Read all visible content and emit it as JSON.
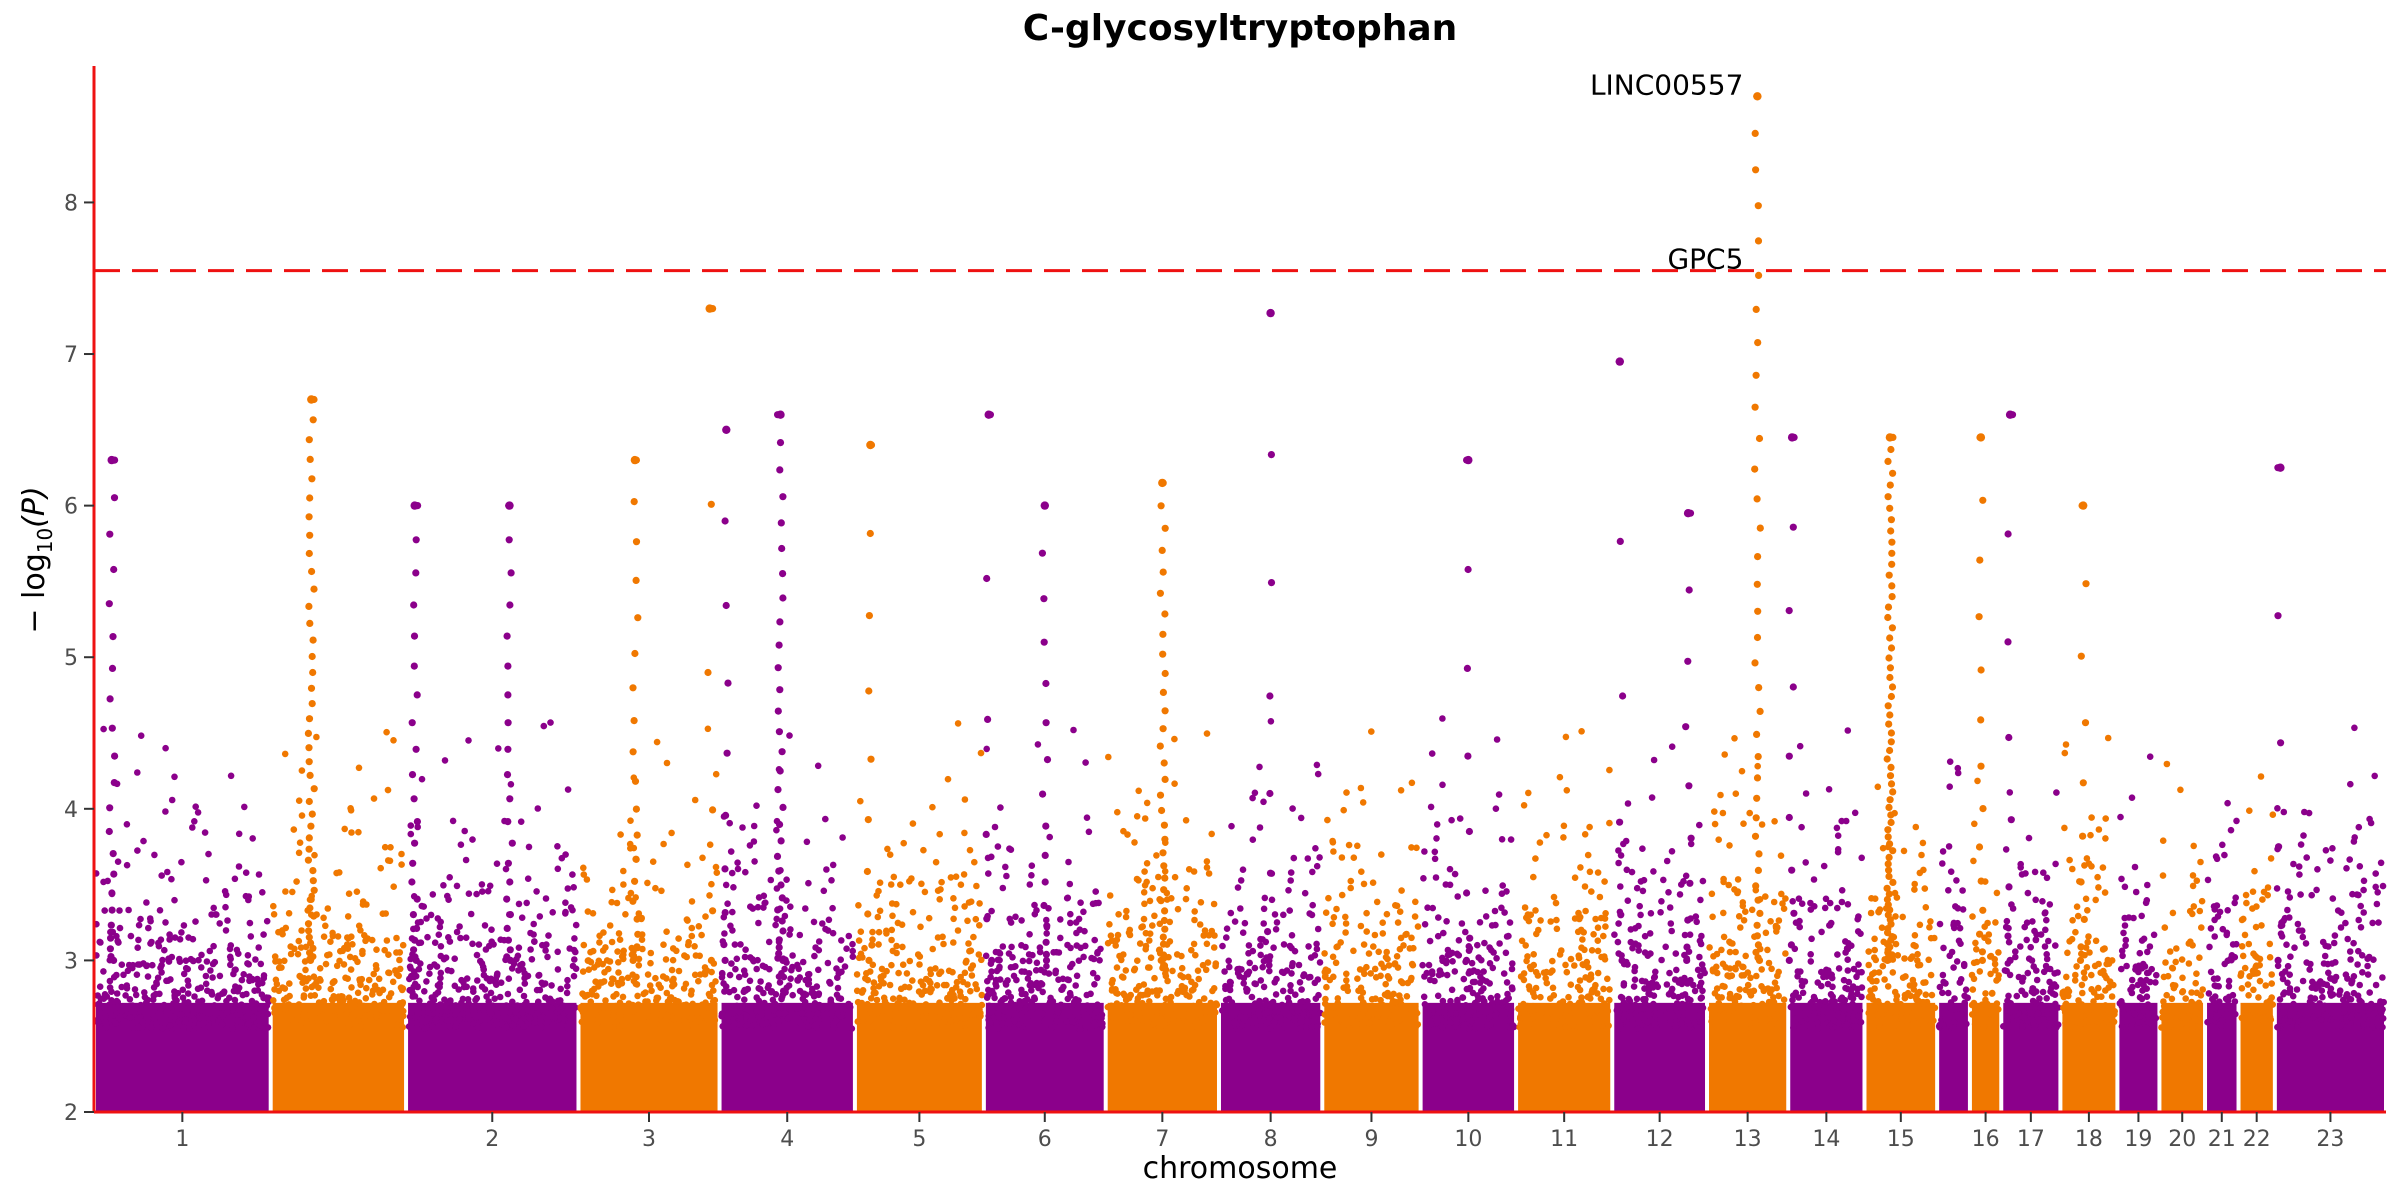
{
  "chart_data": {
    "type": "scatter",
    "subtype": "manhattan",
    "title": "C-glycosyltryptophan",
    "xlabel": "chromosome",
    "ylabel_main": "− log",
    "ylabel_sub": "10",
    "ylabel_tail": "(P)",
    "ylim": [
      2,
      8.9
    ],
    "yticks": [
      2,
      3,
      4,
      5,
      6,
      7,
      8
    ],
    "threshold": 7.55,
    "threshold_color": "#ee1111",
    "colors": [
      "#8b008b",
      "#f07800"
    ],
    "grid": false,
    "chromosomes": [
      {
        "label": "1",
        "start": 0,
        "length": 248
      },
      {
        "label": "",
        "start": 248,
        "length": 190
      },
      {
        "label": "2",
        "start": 438,
        "length": 242
      },
      {
        "label": "3",
        "start": 680,
        "length": 198
      },
      {
        "label": "4",
        "start": 878,
        "length": 190
      },
      {
        "label": "5",
        "start": 1068,
        "length": 181
      },
      {
        "label": "6",
        "start": 1249,
        "length": 171
      },
      {
        "label": "7",
        "start": 1420,
        "length": 159
      },
      {
        "label": "8",
        "start": 1579,
        "length": 145
      },
      {
        "label": "9",
        "start": 1724,
        "length": 138
      },
      {
        "label": "10",
        "start": 1862,
        "length": 134
      },
      {
        "label": "11",
        "start": 1996,
        "length": 135
      },
      {
        "label": "12",
        "start": 2131,
        "length": 133
      },
      {
        "label": "13",
        "start": 2264,
        "length": 114
      },
      {
        "label": "14",
        "start": 2378,
        "length": 107
      },
      {
        "label": "15",
        "start": 2485,
        "length": 102
      },
      {
        "label": "",
        "start": 2587,
        "length": 46
      },
      {
        "label": "16",
        "start": 2633,
        "length": 44
      },
      {
        "label": "17",
        "start": 2677,
        "length": 83
      },
      {
        "label": "18",
        "start": 2760,
        "length": 80
      },
      {
        "label": "19",
        "start": 2840,
        "length": 59
      },
      {
        "label": "20",
        "start": 2899,
        "length": 64
      },
      {
        "label": "21",
        "start": 2963,
        "length": 47
      },
      {
        "label": "22",
        "start": 3010,
        "length": 51
      },
      {
        "label": "23",
        "start": 3061,
        "length": 156
      }
    ],
    "peaks": [
      {
        "chrom": 0,
        "pos": 0.1,
        "max": 6.3,
        "h": 22
      },
      {
        "chrom": 1,
        "pos": 0.3,
        "max": 6.7,
        "h": 45
      },
      {
        "chrom": 2,
        "pos": 0.05,
        "max": 6.0,
        "h": 22
      },
      {
        "chrom": 2,
        "pos": 0.6,
        "max": 6.0,
        "h": 22
      },
      {
        "chrom": 3,
        "pos": 0.4,
        "max": 6.3,
        "h": 20
      },
      {
        "chrom": 3,
        "pos": 0.93,
        "max": 7.3,
        "h": 6
      },
      {
        "chrom": 4,
        "pos": 0.45,
        "max": 6.6,
        "h": 32
      },
      {
        "chrom": 4,
        "pos": 0.05,
        "max": 6.5,
        "h": 10
      },
      {
        "chrom": 5,
        "pos": 0.12,
        "max": 6.4,
        "h": 10
      },
      {
        "chrom": 6,
        "pos": 0.04,
        "max": 6.6,
        "h": 6
      },
      {
        "chrom": 6,
        "pos": 0.5,
        "max": 6.0,
        "h": 16
      },
      {
        "chrom": 7,
        "pos": 0.5,
        "max": 6.15,
        "h": 34
      },
      {
        "chrom": 8,
        "pos": 0.5,
        "max": 7.27,
        "h": 8
      },
      {
        "chrom": 10,
        "pos": 0.5,
        "max": 6.3,
        "h": 8
      },
      {
        "chrom": 12,
        "pos": 0.08,
        "max": 6.95,
        "h": 6
      },
      {
        "chrom": 12,
        "pos": 0.8,
        "max": 5.95,
        "h": 10
      },
      {
        "chrom": 13,
        "pos": 0.62,
        "max": 8.7,
        "h": 38
      },
      {
        "chrom": 14,
        "pos": 0.05,
        "max": 6.45,
        "h": 10
      },
      {
        "chrom": 15,
        "pos": 0.35,
        "max": 6.45,
        "h": 70
      },
      {
        "chrom": 17,
        "pos": 0.35,
        "max": 6.45,
        "h": 14
      },
      {
        "chrom": 18,
        "pos": 0.15,
        "max": 6.6,
        "h": 8
      },
      {
        "chrom": 19,
        "pos": 0.4,
        "max": 6.0,
        "h": 10
      },
      {
        "chrom": 24,
        "pos": 0.05,
        "max": 6.25,
        "h": 6
      }
    ],
    "annotations": [
      {
        "label": "LINC00557",
        "chrom": 13,
        "pos": 0.62,
        "y": 8.7,
        "anchor": "end"
      },
      {
        "label": "GPC5",
        "chrom": 13,
        "pos": 0.62,
        "y": 7.55,
        "anchor": "end"
      }
    ]
  }
}
